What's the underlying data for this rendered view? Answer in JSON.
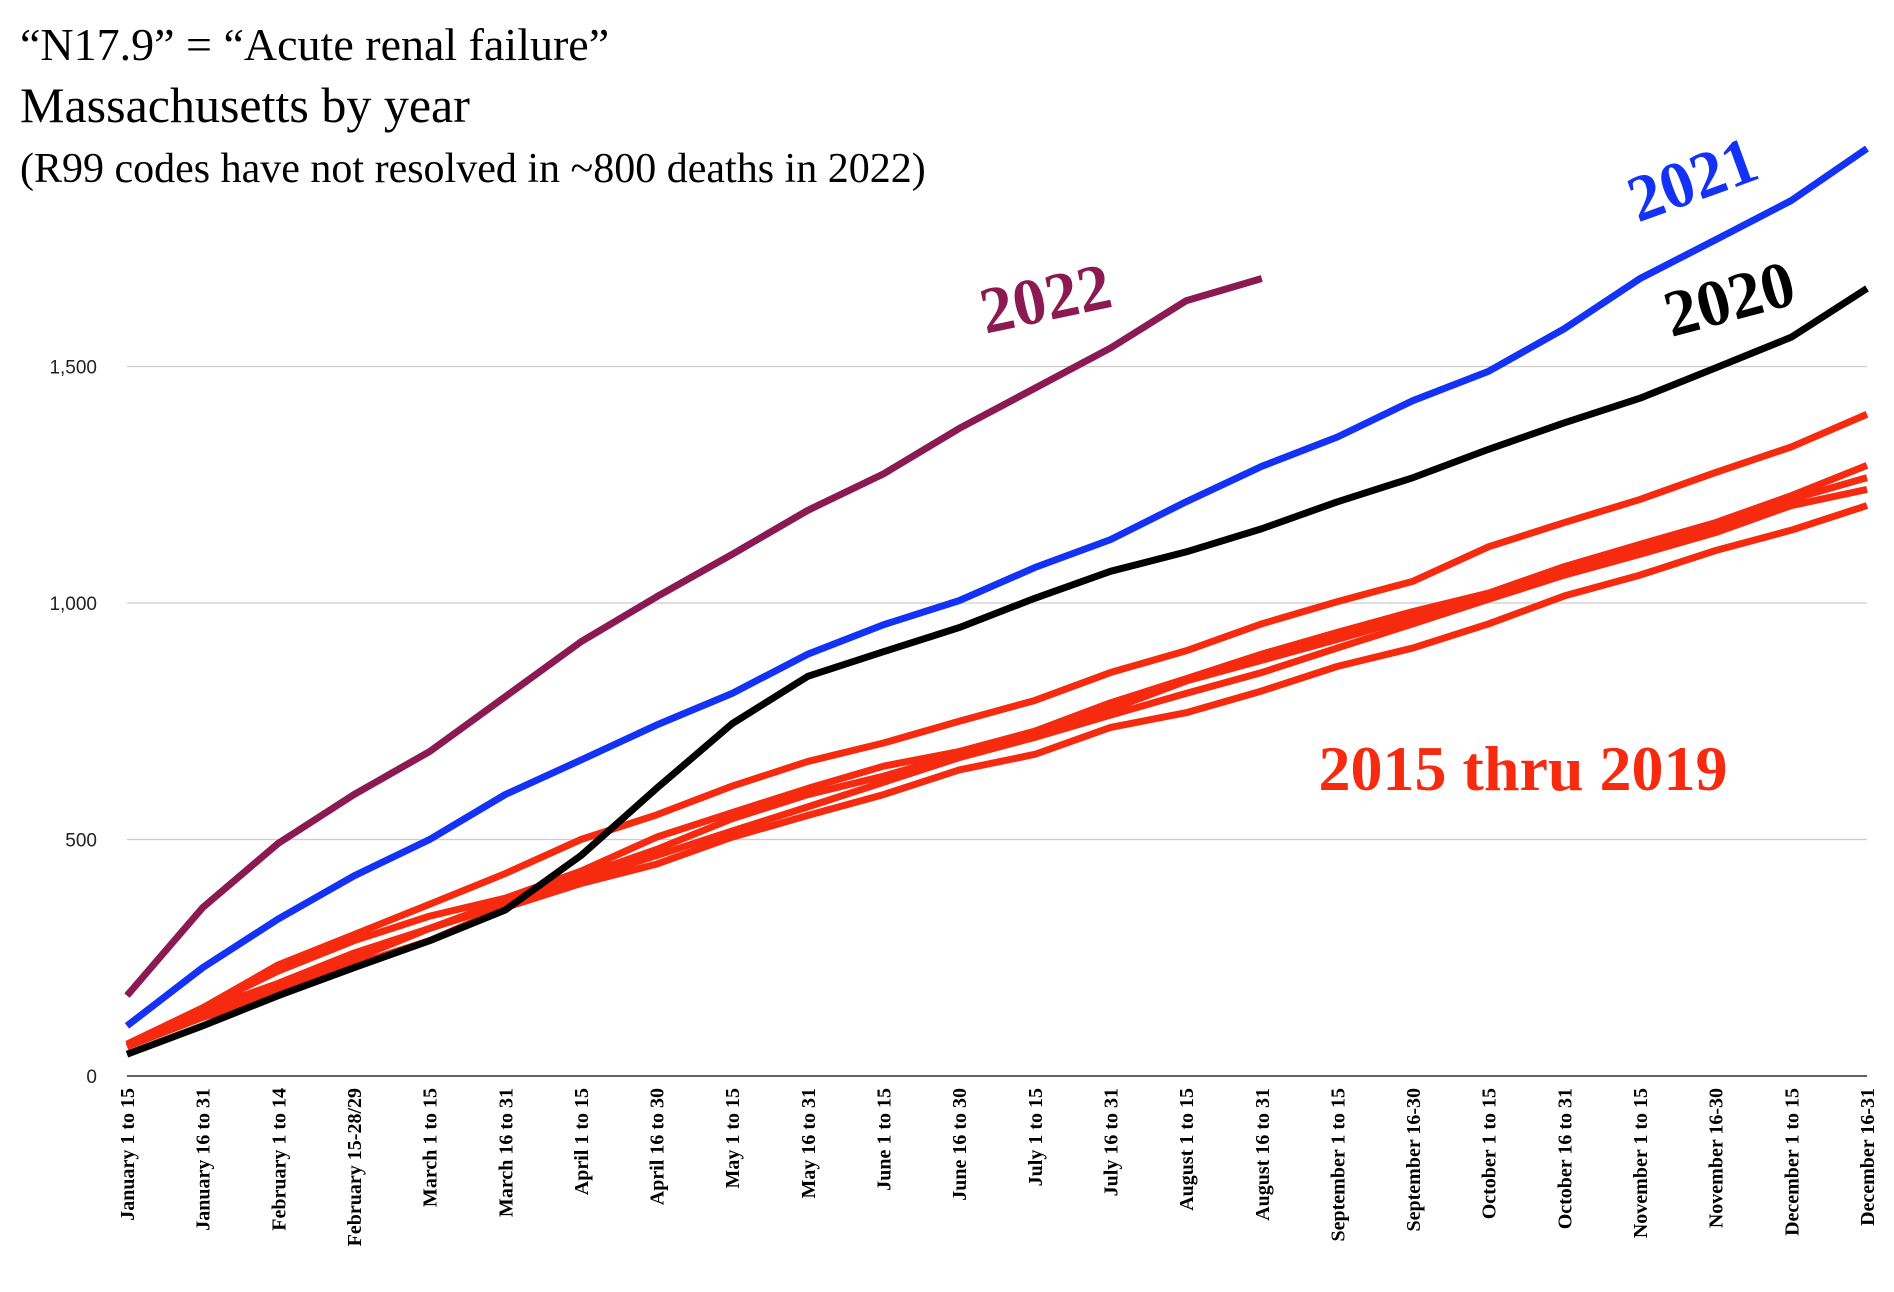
{
  "chart_data": {
    "type": "line",
    "title": "“N17.9” = “Acute renal failure”",
    "subtitle": "Massachusetts by year",
    "note": "(R99 codes have not resolved in ~800 deaths in 2022)",
    "categories": [
      "January 1 to 15",
      "January 16 to 31",
      "February 1 to 14",
      "February 15-28/29",
      "March 1 to 15",
      "March 16 to 31",
      "April 1 to 15",
      "April 16 to 30",
      "May 1 to 15",
      "May 16 to 31",
      "June 1 to 15",
      "June 16 to 30",
      "July 1 to 15",
      "July 16 to 31",
      "August 1 to 15",
      "August 16 to 31",
      "September 1 to 15",
      "September 16-30",
      "October 1 to 15",
      "October 16 to 31",
      "November 1 to 15",
      "November 16-30",
      "December 1 to 15",
      "December 16-31"
    ],
    "ylim": [
      0,
      2000
    ],
    "yticks": [
      0,
      500,
      {
        "value": 1000,
        "label": "1,000"
      },
      {
        "value": 1500,
        "label": "1,500"
      }
    ],
    "grid": true,
    "series": [
      {
        "name": "2022",
        "color": "#8b1a52",
        "values": [
          170,
          356,
          492,
          595,
          686,
          802,
          918,
          1013,
          1103,
          1196,
          1273,
          1369,
          1454,
          1539,
          1639,
          1686,
          null,
          null,
          null,
          null,
          null,
          null,
          null,
          null
        ]
      },
      {
        "name": "2021",
        "color": "#1432f5",
        "values": [
          106,
          229,
          332,
          423,
          500,
          595,
          668,
          742,
          809,
          892,
          954,
          1005,
          1075,
          1134,
          1214,
          1289,
          1351,
          1428,
          1490,
          1580,
          1686,
          1768,
          1851,
          1961
        ]
      },
      {
        "name": "2020",
        "color": "#000000",
        "values": [
          46,
          106,
          170,
          229,
          286,
          351,
          466,
          608,
          745,
          845,
          897,
          948,
          1010,
          1067,
          1108,
          1157,
          1214,
          1265,
          1325,
          1381,
          1433,
          1497,
          1562,
          1665
        ]
      },
      {
        "color": "#f52a0f",
        "values": [
          67,
          144,
          235,
          299,
          363,
          428,
          500,
          552,
          613,
          665,
          704,
          750,
          794,
          853,
          899,
          956,
          1003,
          1046,
          1119,
          1170,
          1219,
          1276,
          1330,
          1399
        ]
      },
      {
        "color": "#f52a0f",
        "values": [
          67,
          144,
          222,
          286,
          338,
          376,
          433,
          505,
          557,
          608,
          655,
          686,
          729,
          789,
          840,
          892,
          938,
          982,
          1021,
          1077,
          1124,
          1170,
          1227,
          1291
        ]
      },
      {
        "color": "#f52a0f",
        "values": [
          67,
          139,
          196,
          260,
          312,
          371,
          423,
          479,
          544,
          595,
          634,
          680,
          724,
          775,
          835,
          879,
          923,
          969,
          1015,
          1067,
          1111,
          1162,
          1219,
          1265
        ]
      },
      {
        "color": "#f52a0f",
        "values": [
          67,
          131,
          183,
          247,
          312,
          363,
          415,
          466,
          518,
          569,
          621,
          673,
          716,
          763,
          809,
          853,
          905,
          956,
          1008,
          1059,
          1103,
          1149,
          1206,
          1240
        ]
      },
      {
        "color": "#f52a0f",
        "values": [
          62,
          124,
          170,
          235,
          286,
          356,
          407,
          448,
          505,
          551,
          595,
          647,
          680,
          737,
          768,
          814,
          866,
          905,
          956,
          1015,
          1059,
          1111,
          1154,
          1206
        ]
      }
    ],
    "annotation": {
      "text": "2015 thru 2019",
      "color": "#f52a0f"
    }
  }
}
